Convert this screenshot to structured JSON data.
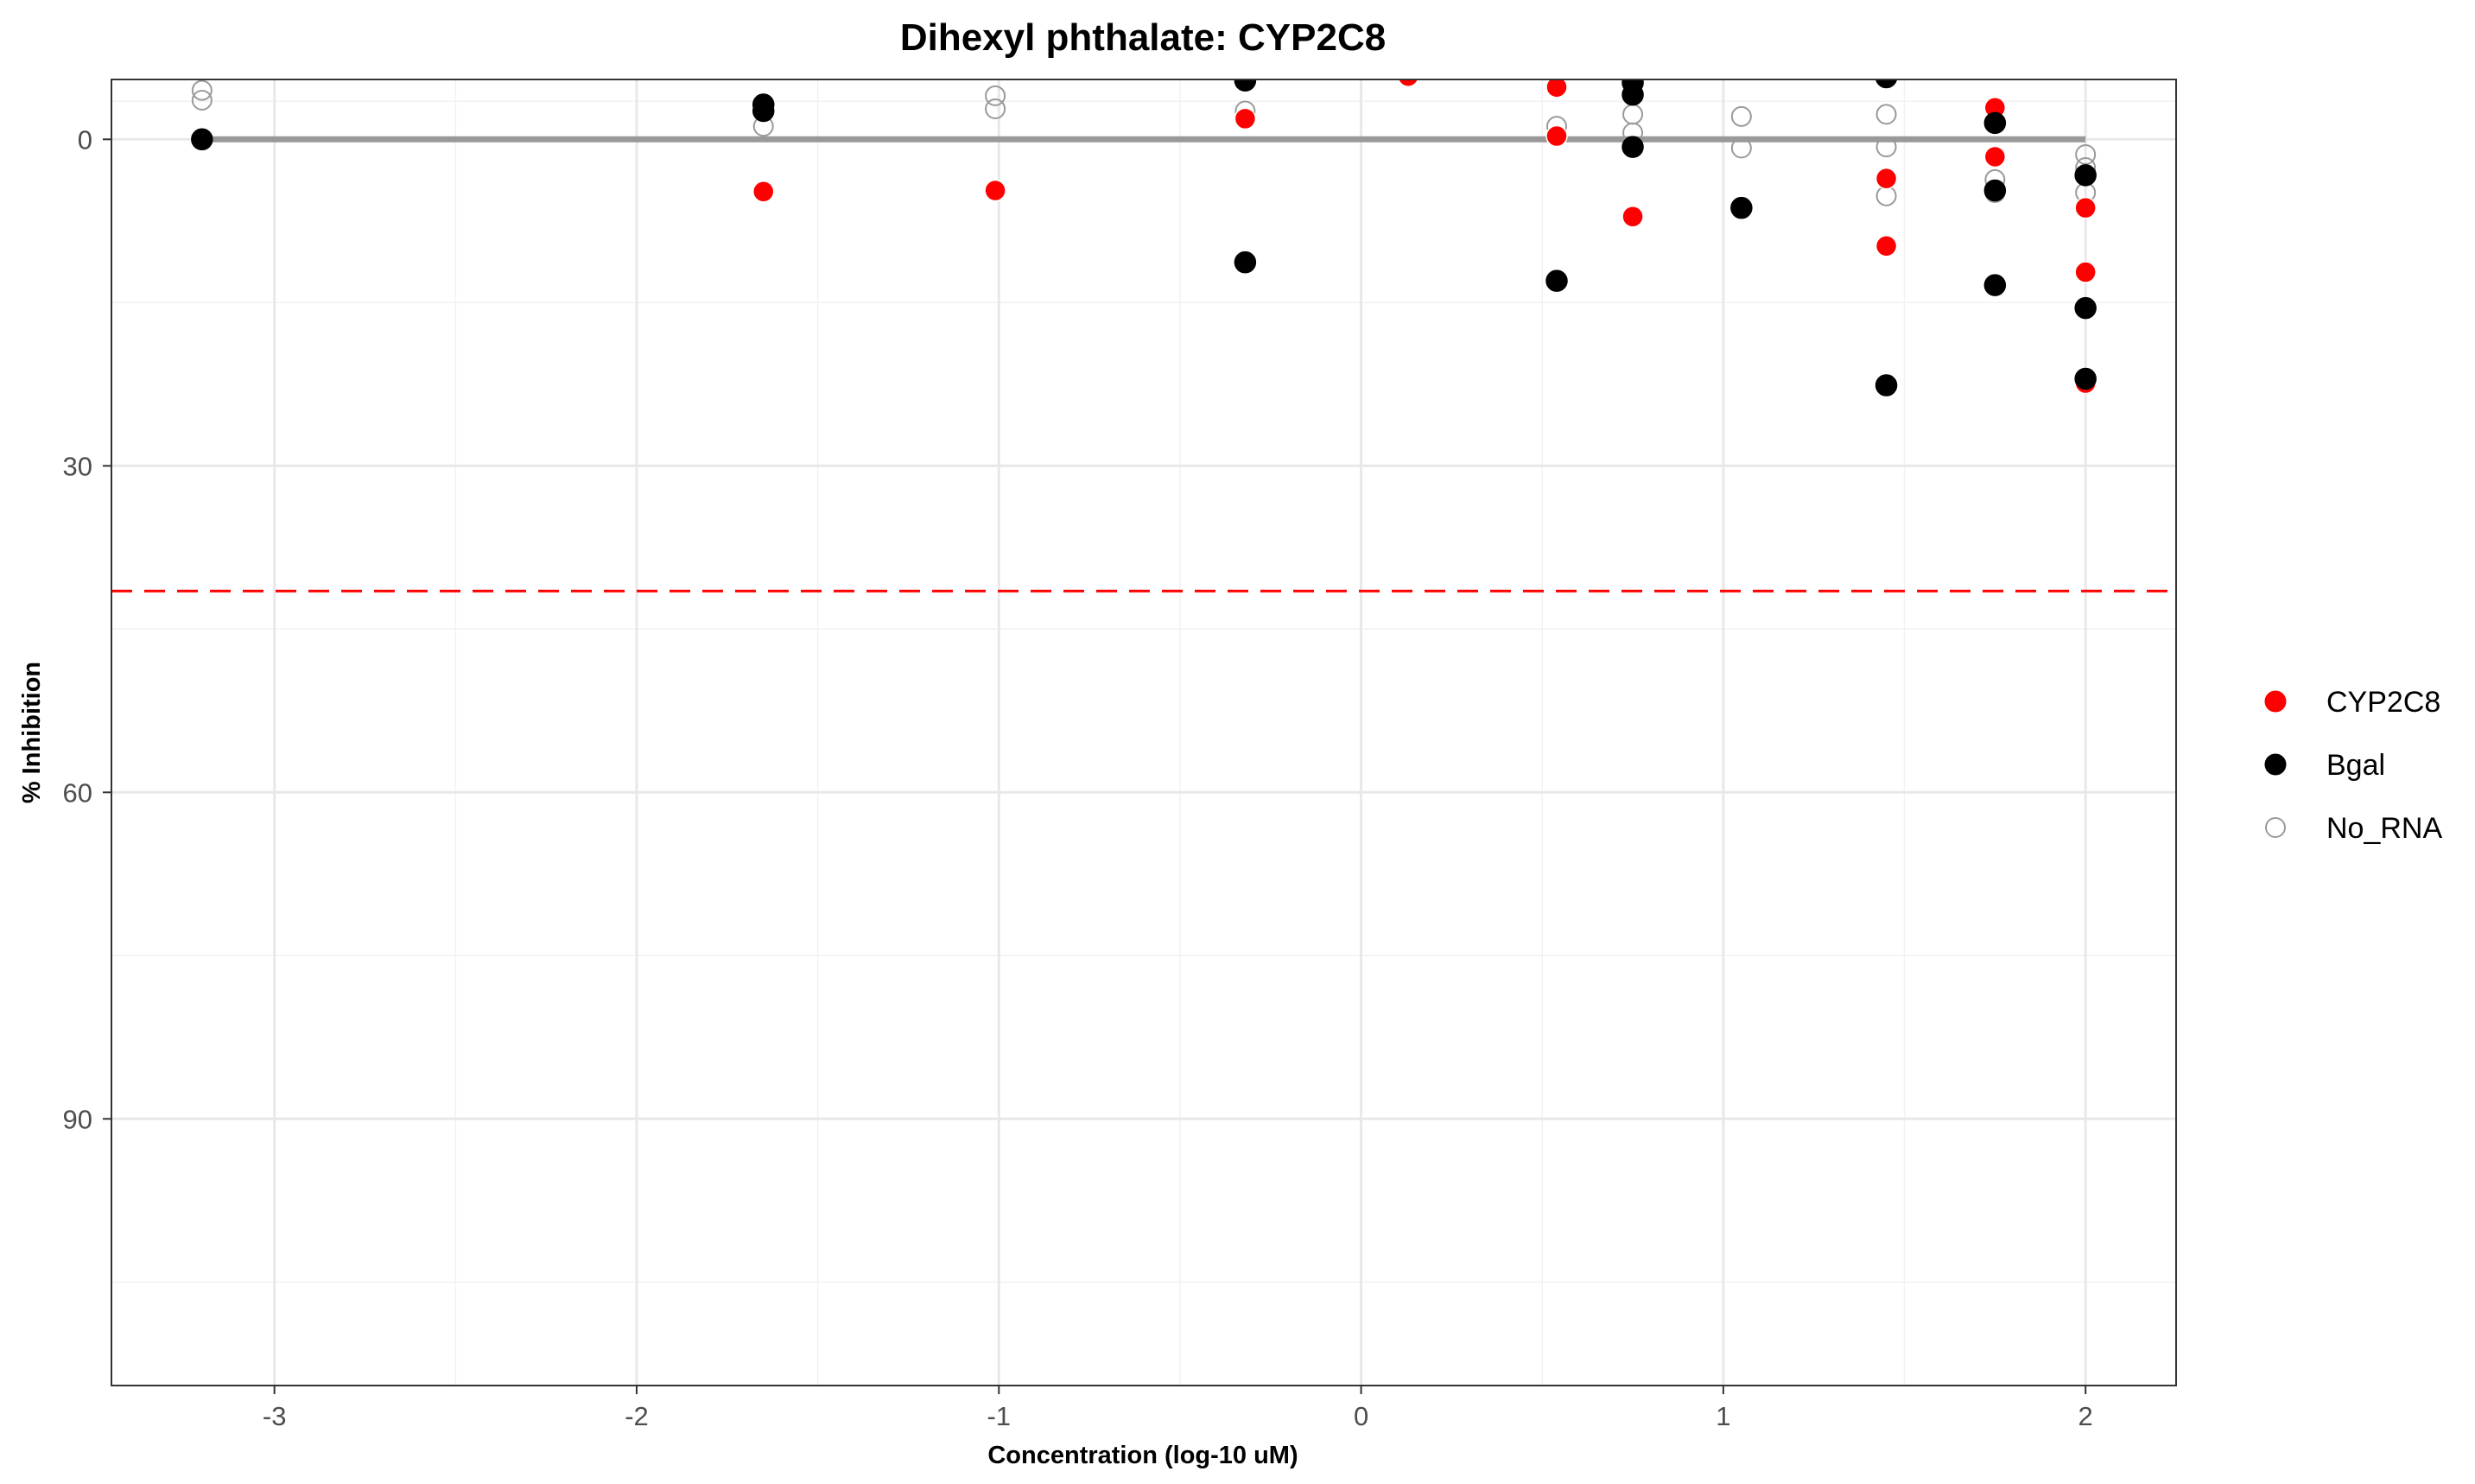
{
  "chart_data": {
    "type": "scatter",
    "title": "Dihexyl phthalate: CYP2C8",
    "xlabel": "Concentration (log-10 uM)",
    "ylabel": "% Inhibition",
    "xlim": [
      -3.45,
      2.25
    ],
    "ylim": [
      -5.5,
      114.5
    ],
    "y_reversed": true,
    "x_ticks": [
      -3,
      -2,
      -1,
      0,
      1,
      2
    ],
    "x_tick_labels": [
      "-3",
      "-2",
      "-1",
      "0",
      "1",
      "2"
    ],
    "y_ticks": [
      0,
      30,
      60,
      90
    ],
    "y_tick_labels": [
      "0",
      "30",
      "60",
      "90"
    ],
    "grid": true,
    "legend_position": "right",
    "threshold_line": {
      "y": 41.5,
      "color": "#ff0000",
      "style": "dashed"
    },
    "fit_line": {
      "x": [
        -3.2,
        2.0
      ],
      "y": [
        0,
        0
      ],
      "color": "#999999"
    },
    "series": [
      {
        "name": "CYP2C8",
        "color": "#ff0000",
        "marker": "filled",
        "points": [
          [
            -3.2,
            0
          ],
          [
            -1.65,
            4.8
          ],
          [
            -1.01,
            4.7
          ],
          [
            -0.32,
            -1.9
          ],
          [
            0.13,
            -5.8
          ],
          [
            0.54,
            -4.8
          ],
          [
            0.54,
            -0.3
          ],
          [
            0.75,
            7.1
          ],
          [
            1.45,
            3.6
          ],
          [
            1.45,
            9.8
          ],
          [
            1.75,
            -2.9
          ],
          [
            1.75,
            1.6
          ],
          [
            2.0,
            6.3
          ],
          [
            2.0,
            12.2
          ],
          [
            2.0,
            22.4
          ]
        ]
      },
      {
        "name": "Bgal",
        "color": "#000000",
        "marker": "filled",
        "points": [
          [
            -3.2,
            0
          ],
          [
            -1.65,
            -3.2
          ],
          [
            -1.65,
            -2.6
          ],
          [
            -0.32,
            -5.4
          ],
          [
            -0.32,
            11.3
          ],
          [
            0.54,
            13.0
          ],
          [
            0.75,
            -5.2
          ],
          [
            0.75,
            -4.1
          ],
          [
            0.75,
            0.7
          ],
          [
            1.05,
            6.3
          ],
          [
            1.45,
            -5.7
          ],
          [
            1.45,
            22.6
          ],
          [
            1.75,
            -1.5
          ],
          [
            1.75,
            4.7
          ],
          [
            1.75,
            13.4
          ],
          [
            2.0,
            3.3
          ],
          [
            2.0,
            15.5
          ],
          [
            2.0,
            22.0
          ]
        ]
      },
      {
        "name": "No_RNA",
        "color": "#9a9a9a",
        "marker": "open",
        "points": [
          [
            -3.2,
            -4.5
          ],
          [
            -3.2,
            -3.6
          ],
          [
            -1.65,
            -1.2
          ],
          [
            -1.01,
            -4.0
          ],
          [
            -1.01,
            -2.8
          ],
          [
            -0.32,
            -2.6
          ],
          [
            0.54,
            -1.2
          ],
          [
            0.75,
            -2.3
          ],
          [
            0.75,
            -0.6
          ],
          [
            1.05,
            -2.1
          ],
          [
            1.05,
            0.8
          ],
          [
            1.45,
            -2.3
          ],
          [
            1.45,
            0.7
          ],
          [
            1.45,
            5.2
          ],
          [
            1.75,
            3.7
          ],
          [
            1.75,
            4.9
          ],
          [
            2.0,
            1.4
          ],
          [
            2.0,
            2.6
          ],
          [
            2.0,
            4.9
          ]
        ]
      }
    ]
  }
}
